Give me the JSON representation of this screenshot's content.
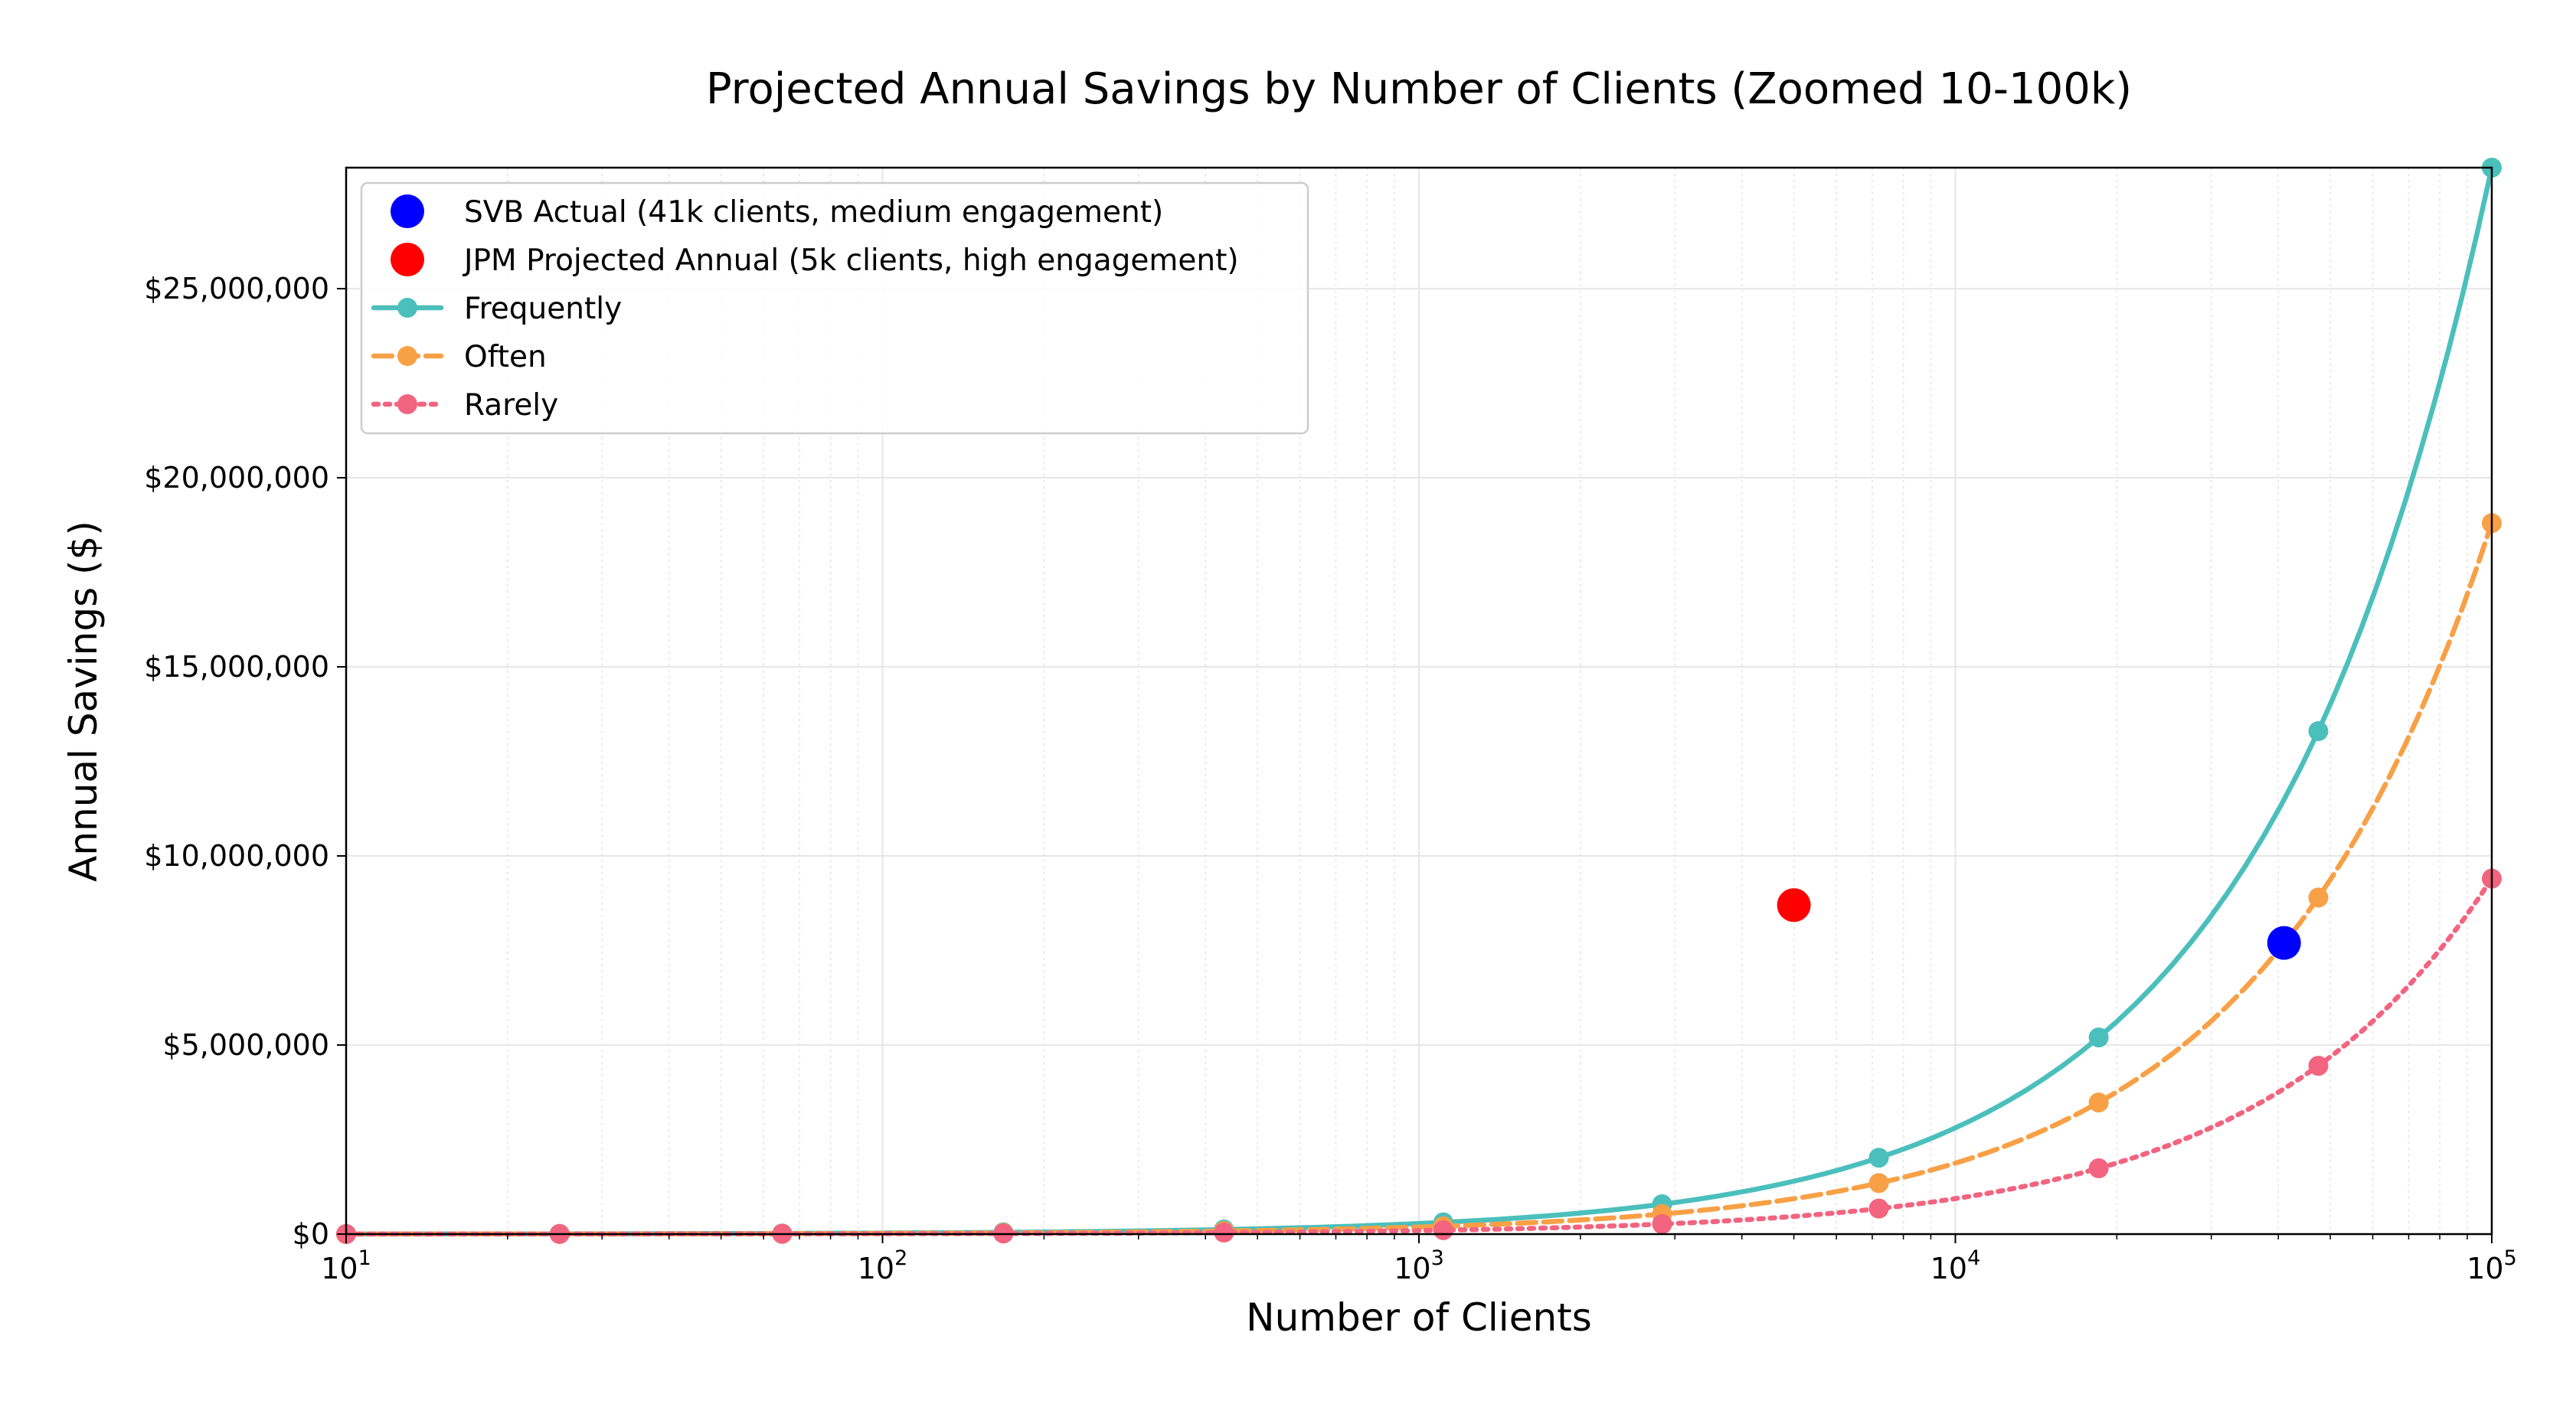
{
  "chart_data": {
    "type": "line",
    "title": "Projected Annual Savings by Number of Clients (Zoomed 10-100k)",
    "xlabel": "Number of Clients",
    "ylabel": "Annual Savings ($)",
    "xscale": "log",
    "xlim": [
      10,
      100000
    ],
    "ylim": [
      0,
      28200000
    ],
    "grid": true,
    "legend_position": "upper-left",
    "x_ticks": [
      {
        "value": 10,
        "base": "10",
        "exp": "1"
      },
      {
        "value": 100,
        "base": "10",
        "exp": "2"
      },
      {
        "value": 1000,
        "base": "10",
        "exp": "3"
      },
      {
        "value": 10000,
        "base": "10",
        "exp": "4"
      },
      {
        "value": 100000,
        "base": "10",
        "exp": "5"
      }
    ],
    "y_ticks": [
      {
        "value": 0,
        "label": "$0"
      },
      {
        "value": 5000000,
        "label": "$5,000,000"
      },
      {
        "value": 10000000,
        "label": "$10,000,000"
      },
      {
        "value": 15000000,
        "label": "$15,000,000"
      },
      {
        "value": 20000000,
        "label": "$20,000,000"
      },
      {
        "value": 25000000,
        "label": "$25,000,000"
      }
    ],
    "series": [
      {
        "name": "Frequently",
        "color": "#4bbfbc",
        "style": "solid",
        "x": [
          10,
          25,
          65,
          168,
          433,
          1110,
          2840,
          7200,
          18500,
          47500,
          100000
        ],
        "values": [
          2800,
          7100,
          18500,
          47000,
          121000,
          310000,
          790000,
          2020000,
          5200000,
          13300000,
          28200000
        ]
      },
      {
        "name": "Often",
        "color": "#f8a046",
        "style": "dashed",
        "x": [
          10,
          25,
          65,
          168,
          433,
          1110,
          2840,
          7200,
          18500,
          47500,
          100000
        ],
        "values": [
          1880,
          4700,
          12300,
          31500,
          81000,
          208000,
          530000,
          1350000,
          3480000,
          8900000,
          18800000
        ]
      },
      {
        "name": "Rarely",
        "color": "#f2647f",
        "style": "dotted",
        "x": [
          10,
          25,
          65,
          168,
          433,
          1110,
          2840,
          7200,
          18500,
          47500,
          100000
        ],
        "values": [
          940,
          2350,
          6150,
          15800,
          40500,
          104000,
          265000,
          675000,
          1740000,
          4450000,
          9400000
        ]
      }
    ],
    "points": [
      {
        "name": "SVB Actual (41k clients, medium engagement)",
        "color": "#0000ff",
        "x": 41000,
        "y": 7700000
      },
      {
        "name": "JPM Projected Annual (5k clients, high engagement)",
        "color": "#ff0000",
        "x": 5000,
        "y": 8700000
      }
    ]
  }
}
